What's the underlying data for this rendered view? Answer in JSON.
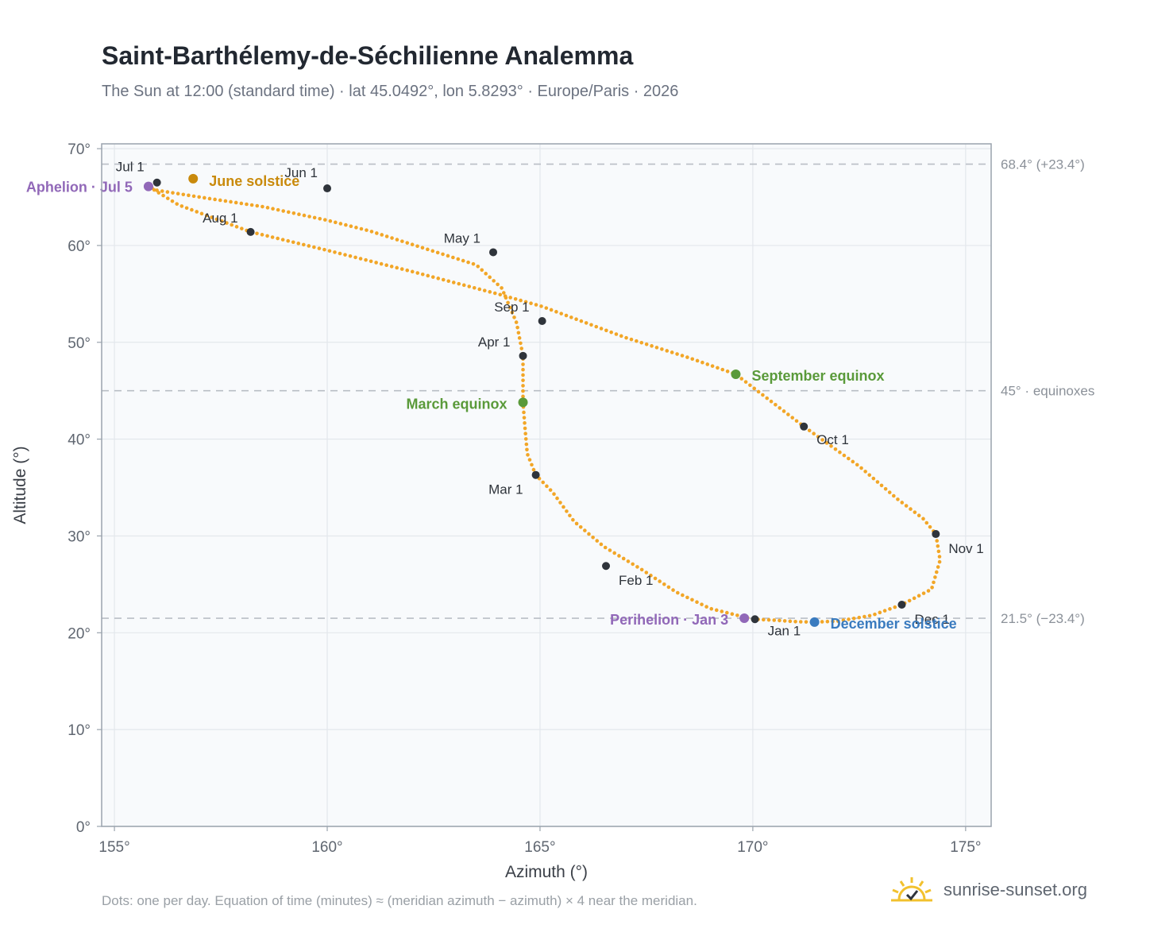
{
  "header": {
    "title": "Saint-Barthélemy-de-Séchilienne Analemma",
    "subtitle": "The Sun at 12:00 (standard time) · lat 45.0492°, lon 5.8293° · Europe/Paris · 2026"
  },
  "footer": {
    "note": "Dots: one per day. Equation of time (minutes) ≈ (meridian azimuth − azimuth) × 4 near the meridian.",
    "brand": "sunrise-sunset.org",
    "brand_icon": "sun-logo-icon"
  },
  "colors": {
    "curve": "#f2a627",
    "month_marker": "#2f343b",
    "solstice_june": "#c98a0c",
    "solstice_december": "#3a7bbf",
    "equinox": "#5a9a3a",
    "apsis": "#9168b8",
    "plot_bg": "#f8fafc",
    "grid": "#e3e7ec",
    "frame": "#9aa3ad",
    "reference_line": "#b9bec5"
  },
  "chart_data": {
    "type": "scatter",
    "xlabel": "Azimuth (°)",
    "ylabel": "Altitude (°)",
    "xlim": [
      154.7,
      175.6
    ],
    "ylim": [
      0,
      70.5
    ],
    "xticks": [
      155,
      160,
      165,
      170,
      175
    ],
    "yticks": [
      0,
      10,
      20,
      30,
      40,
      50,
      60,
      70
    ],
    "xtick_labels": [
      "155°",
      "160°",
      "165°",
      "170°",
      "175°"
    ],
    "ytick_labels": [
      "0°",
      "10°",
      "20°",
      "30°",
      "40°",
      "50°",
      "60°",
      "70°"
    ],
    "grid": true,
    "series": [
      {
        "kind": "daily-analemma",
        "path_x": [
          170.0,
          169.0,
          168.2,
          167.4,
          166.5,
          165.8,
          165.3,
          164.9,
          164.7,
          164.65,
          164.6,
          164.6,
          164.6,
          164.45,
          164.1,
          163.5,
          162.5,
          161.0,
          160.0,
          158.5,
          157.0,
          156.0,
          155.8,
          156.5,
          158.2,
          160.0,
          162.0,
          164.0,
          165.05,
          167.0,
          168.5,
          169.6,
          171.2,
          172.5,
          173.4,
          174.0,
          174.3,
          174.4,
          174.2,
          173.5,
          172.8,
          172.0,
          171.4,
          171.0,
          170.5,
          170.0
        ],
        "path_y": [
          21.4,
          22.5,
          24.2,
          26.5,
          28.9,
          31.5,
          34.5,
          36.3,
          38.5,
          41.0,
          43.8,
          46.0,
          48.6,
          52.0,
          55.6,
          58.0,
          59.4,
          61.5,
          62.6,
          64.0,
          65.0,
          65.7,
          66.1,
          64.2,
          61.4,
          59.5,
          57.3,
          55.0,
          53.7,
          50.5,
          48.4,
          46.7,
          41.3,
          37.2,
          33.8,
          31.8,
          30.2,
          27.5,
          24.5,
          22.9,
          21.8,
          21.2,
          21.1,
          21.15,
          21.3,
          21.4
        ]
      }
    ],
    "month_markers": [
      {
        "label": "Jan 1",
        "x": 170.05,
        "y": 21.4
      },
      {
        "label": "Feb 1",
        "x": 166.55,
        "y": 26.9
      },
      {
        "label": "Mar 1",
        "x": 164.9,
        "y": 36.3
      },
      {
        "label": "Apr 1",
        "x": 164.6,
        "y": 48.6
      },
      {
        "label": "May 1",
        "x": 163.9,
        "y": 59.3
      },
      {
        "label": "Jun 1",
        "x": 160.0,
        "y": 65.9
      },
      {
        "label": "Jul 1",
        "x": 156.0,
        "y": 66.5
      },
      {
        "label": "Aug 1",
        "x": 158.2,
        "y": 61.4
      },
      {
        "label": "Sep 1",
        "x": 165.05,
        "y": 52.2
      },
      {
        "label": "Oct 1",
        "x": 171.2,
        "y": 41.3
      },
      {
        "label": "Nov 1",
        "x": 174.3,
        "y": 30.2
      },
      {
        "label": "Dec 1",
        "x": 173.5,
        "y": 22.9
      }
    ],
    "events": [
      {
        "label": "June solstice",
        "x": 156.85,
        "y": 66.9,
        "color_key": "solstice_june"
      },
      {
        "label": "Aphelion · Jul 5",
        "x": 155.8,
        "y": 66.1,
        "color_key": "apsis"
      },
      {
        "label": "March equinox",
        "x": 164.6,
        "y": 43.8,
        "color_key": "equinox"
      },
      {
        "label": "September equinox",
        "x": 169.6,
        "y": 46.7,
        "color_key": "equinox"
      },
      {
        "label": "Perihelion · Jan 3",
        "x": 169.8,
        "y": 21.5,
        "color_key": "apsis"
      },
      {
        "label": "December solstice",
        "x": 171.45,
        "y": 21.1,
        "color_key": "solstice_december"
      }
    ],
    "reference_lines": [
      {
        "y": 68.4,
        "label": "68.4° (+23.4°)"
      },
      {
        "y": 45.0,
        "label": "45° · equinoxes"
      },
      {
        "y": 21.5,
        "label": "21.5° (−23.4°)"
      }
    ]
  }
}
